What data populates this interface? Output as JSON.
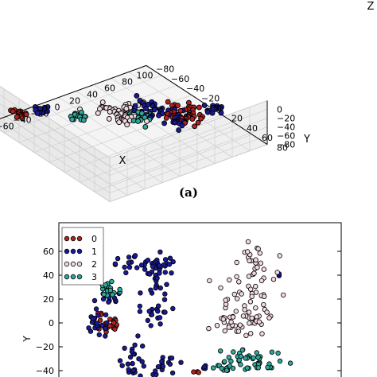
{
  "caption": "(a)",
  "chart_data": [
    {
      "type": "scatter",
      "projection": "3d",
      "xlabel": "X",
      "ylabel": "Y",
      "zlabel": "Z",
      "x_ticks": [
        "−80",
        "−60",
        "−40",
        "−20",
        "0",
        "20",
        "40",
        "60",
        "80",
        "100"
      ],
      "y_ticks": [
        "−80",
        "−60",
        "−40",
        "−20",
        "0",
        "20",
        "40",
        "60",
        "80"
      ],
      "z_ticks": [
        "0",
        "−20",
        "−40",
        "−60",
        "−80"
      ],
      "grid": true,
      "series": [
        {
          "color": "#b22222",
          "name": "0",
          "clusters": [
            {
              "x": -62,
              "y": -60,
              "z": -50,
              "n": 16,
              "spread": 4
            },
            {
              "x": 55,
              "y": 20,
              "z": -45,
              "n": 44,
              "spread": 9
            }
          ]
        },
        {
          "color": "#1a1a99",
          "name": "1",
          "clusters": [
            {
              "x": -40,
              "y": -55,
              "z": -52,
              "n": 14,
              "spread": 4
            },
            {
              "x": 10,
              "y": 30,
              "z": 10,
              "n": 30,
              "spread": 9
            },
            {
              "x": 30,
              "y": 45,
              "z": -10,
              "n": 22,
              "spread": 6
            },
            {
              "x": 62,
              "y": 55,
              "z": 0,
              "n": 16,
              "spread": 4
            }
          ]
        },
        {
          "color": "#f2d9e0",
          "name": "2",
          "clusters": [
            {
              "x": -15,
              "y": 20,
              "z": 15,
              "n": 38,
              "spread": 10
            },
            {
              "x": -10,
              "y": 15,
              "z": -10,
              "n": 12,
              "spread": 5
            }
          ]
        },
        {
          "color": "#2fa89a",
          "name": "3",
          "clusters": [
            {
              "x": -20,
              "y": -30,
              "z": -55,
              "n": 14,
              "spread": 4
            },
            {
              "x": 10,
              "y": 15,
              "z": -25,
              "n": 16,
              "spread": 5
            }
          ]
        }
      ]
    },
    {
      "type": "scatter",
      "ylabel": "Y",
      "y_ticks": [
        "60",
        "40",
        "20",
        "0",
        "−20",
        "−40"
      ],
      "ylim": [
        -45,
        75
      ],
      "xlim": [
        -80,
        100
      ],
      "legend_placement": "top-left",
      "series": [
        {
          "name": "0",
          "color": "#b22222",
          "clusters": [
            {
              "x": -48,
              "y": -2,
              "n": 22,
              "sx": 4,
              "sy": 5
            },
            {
              "x": -53,
              "y": 8,
              "n": 3,
              "sx": 1,
              "sy": 1
            },
            {
              "x": 8,
              "y": -41,
              "n": 3,
              "sx": 1,
              "sy": 1
            }
          ]
        },
        {
          "name": "1",
          "color": "#1a1a99",
          "clusters": [
            {
              "x": -55,
              "y": -1,
              "n": 22,
              "sx": 5,
              "sy": 6
            },
            {
              "x": -48,
              "y": 20,
              "n": 10,
              "sx": 4,
              "sy": 3
            },
            {
              "x": -26,
              "y": 48,
              "n": 32,
              "sx": 12,
              "sy": 4
            },
            {
              "x": -17,
              "y": 35,
              "n": 26,
              "sx": 5,
              "sy": 10
            },
            {
              "x": -17,
              "y": 8,
              "n": 18,
              "sx": 4,
              "sy": 6
            },
            {
              "x": -32,
              "y": -30,
              "n": 24,
              "sx": 4,
              "sy": 8
            },
            {
              "x": -10,
              "y": -35,
              "n": 16,
              "sx": 6,
              "sy": 4
            },
            {
              "x": 12,
              "y": -37,
              "n": 4,
              "sx": 1,
              "sy": 2
            },
            {
              "x": 60,
              "y": 40,
              "n": 2,
              "sx": 1,
              "sy": 1
            }
          ]
        },
        {
          "name": "2",
          "color": "#f2d9e0",
          "clusters": [
            {
              "x": 45,
              "y": 50,
              "n": 26,
              "sx": 5,
              "sy": 8
            },
            {
              "x": 35,
              "y": 18,
              "n": 40,
              "sx": 12,
              "sy": 12
            },
            {
              "x": 28,
              "y": -5,
              "n": 16,
              "sx": 6,
              "sy": 6
            },
            {
              "x": 46,
              "y": 0,
              "n": 14,
              "sx": 5,
              "sy": 5
            }
          ]
        },
        {
          "name": "3",
          "color": "#2fa89a",
          "clusters": [
            {
              "x": -48,
              "y": 28,
              "n": 22,
              "sx": 4,
              "sy": 5
            },
            {
              "x": 42,
              "y": -30,
              "n": 40,
              "sx": 12,
              "sy": 6
            },
            {
              "x": 26,
              "y": -38,
              "n": 10,
              "sx": 4,
              "sy": 3
            },
            {
              "x": 53,
              "y": -38,
              "n": 6,
              "sx": 2,
              "sy": 2
            }
          ]
        }
      ]
    }
  ]
}
